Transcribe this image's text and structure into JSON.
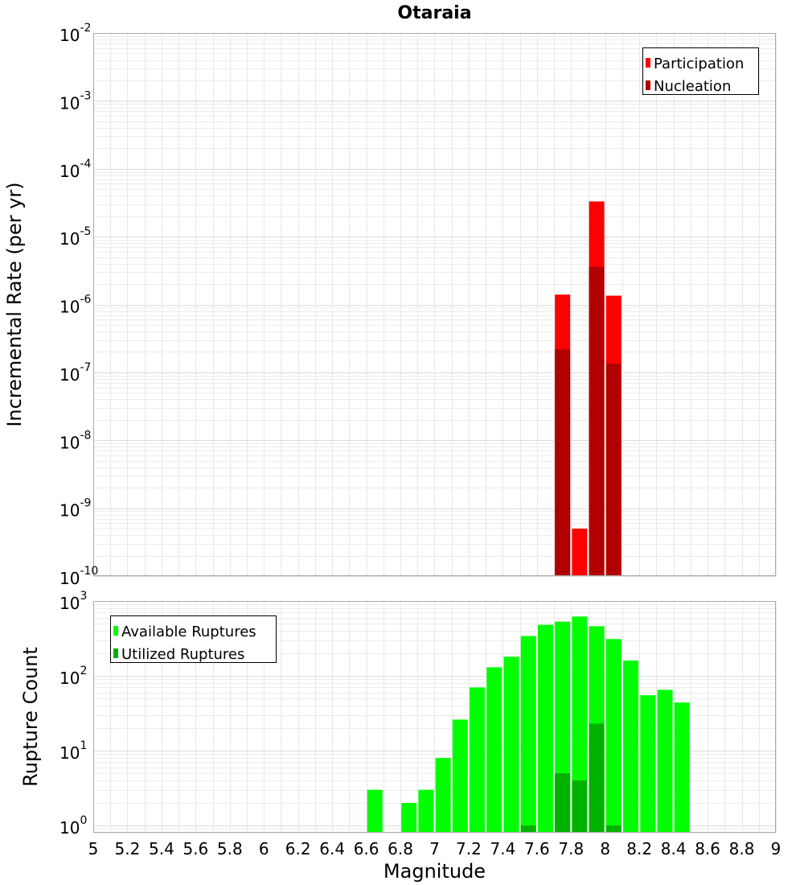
{
  "chart_data": {
    "title": "Otaraia",
    "x_axis": {
      "label": "Magnitude",
      "range": [
        5,
        9
      ],
      "ticks": [
        "5",
        "5.2",
        "5.4",
        "5.6",
        "5.8",
        "6",
        "6.2",
        "6.4",
        "6.6",
        "6.8",
        "7",
        "7.2",
        "7.4",
        "7.6",
        "7.8",
        "8",
        "8.2",
        "8.4",
        "8.6",
        "8.8",
        "9"
      ]
    },
    "panels": [
      {
        "type": "bar",
        "y_scale": "log",
        "ylabel": "Incremental Rate (per yr)",
        "ylim": [
          1e-10,
          0.01
        ],
        "y_tick_exponents": [
          "-10",
          "-9",
          "-8",
          "-7",
          "-6",
          "-5",
          "-4",
          "-3",
          "-2"
        ],
        "legend_position": "top-right",
        "series": [
          {
            "name": "Participation",
            "color": "#ff0000",
            "x": [
              7.75,
              7.85,
              7.95,
              8.05
            ],
            "values": [
              1.4e-06,
              5e-10,
              3.3e-05,
              1.35e-06
            ]
          },
          {
            "name": "Nucleation",
            "color": "#b20000",
            "x": [
              7.75,
              7.95,
              8.05
            ],
            "values": [
              2.2e-07,
              3.6e-06,
              1.35e-07
            ]
          }
        ]
      },
      {
        "type": "bar",
        "y_scale": "log",
        "ylabel": "Rupture Count",
        "ylim": [
          0.8,
          1000
        ],
        "y_tick_exponents": [
          "0",
          "1",
          "2",
          "3"
        ],
        "legend_position": "top-left",
        "series": [
          {
            "name": "Available Ruptures",
            "color": "#00ff00",
            "x": [
              6.65,
              6.85,
              6.95,
              7.05,
              7.15,
              7.25,
              7.35,
              7.45,
              7.55,
              7.65,
              7.75,
              7.85,
              7.95,
              8.05,
              8.15,
              8.25,
              8.35,
              8.45
            ],
            "values": [
              3,
              2,
              3,
              8,
              26,
              70,
              130,
              180,
              340,
              480,
              530,
              620,
              460,
              310,
              160,
              55,
              65,
              44
            ]
          },
          {
            "name": "Utilized Ruptures",
            "color": "#00b200",
            "x": [
              7.55,
              7.75,
              7.85,
              7.95,
              8.05
            ],
            "values": [
              1,
              5,
              4,
              23,
              1
            ]
          }
        ]
      }
    ]
  }
}
